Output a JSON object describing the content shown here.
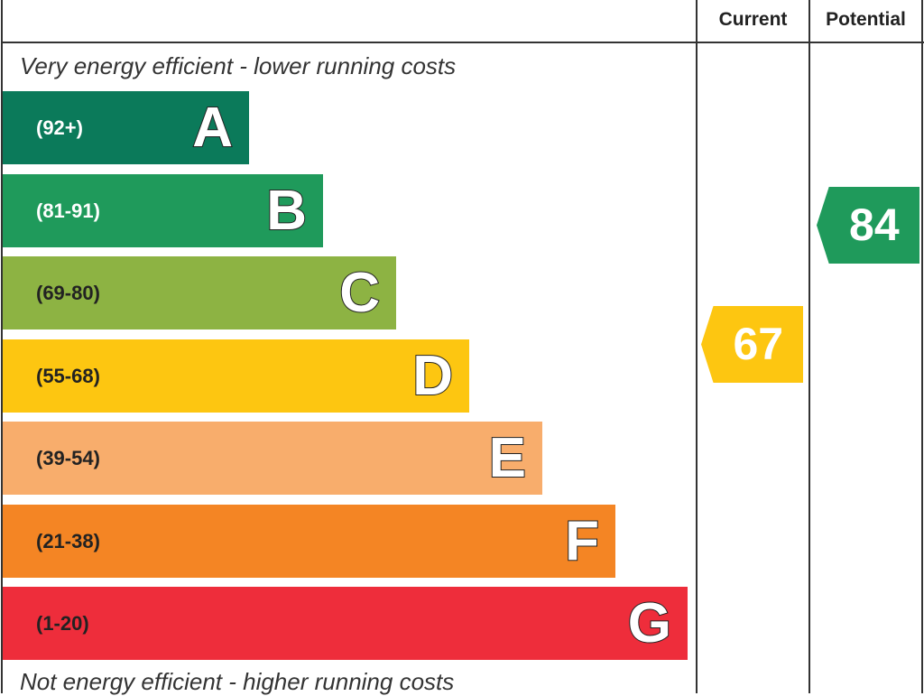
{
  "chart_data": {
    "type": "bar",
    "header": {
      "current": "Current",
      "potential": "Potential"
    },
    "top_caption": "Very energy efficient - lower running costs",
    "bottom_caption": "Not energy efficient - higher running costs",
    "bands": [
      {
        "letter": "A",
        "range": "(92+)",
        "color": "#0b7a5a",
        "text_color": "#ffffff"
      },
      {
        "letter": "B",
        "range": "(81-91)",
        "color": "#1f9a5b",
        "text_color": "#ffffff"
      },
      {
        "letter": "C",
        "range": "(69-80)",
        "color": "#8db343",
        "text_color": "#222222"
      },
      {
        "letter": "D",
        "range": "(55-68)",
        "color": "#fdc611",
        "text_color": "#222222"
      },
      {
        "letter": "E",
        "range": "(39-54)",
        "color": "#f8ad6c",
        "text_color": "#222222"
      },
      {
        "letter": "F",
        "range": "(21-38)",
        "color": "#f48524",
        "text_color": "#222222"
      },
      {
        "letter": "G",
        "range": "(1-20)",
        "color": "#ee2d3b",
        "text_color": "#222222"
      }
    ],
    "current": {
      "value": "67",
      "band": "D",
      "color": "#fdc611"
    },
    "potential": {
      "value": "84",
      "band": "B",
      "color": "#1f9a5b"
    }
  }
}
